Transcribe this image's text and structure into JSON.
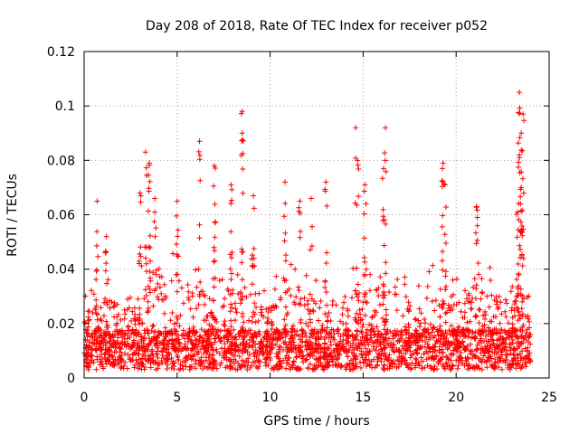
{
  "chart_data": {
    "type": "scatter",
    "title": "Day 208 of 2018, Rate Of TEC Index for receiver p052",
    "xlabel": "GPS time / hours",
    "ylabel": "ROTI / TECUs",
    "xlim": [
      0,
      25
    ],
    "ylim": [
      0,
      0.12
    ],
    "xticks": [
      0,
      5,
      10,
      15,
      20,
      25
    ],
    "xtick_labels": [
      "0",
      "5",
      "10",
      "15",
      "20",
      "25"
    ],
    "yticks": [
      0,
      0.02,
      0.04,
      0.06,
      0.08,
      0.1,
      0.12
    ],
    "ytick_labels": [
      "0",
      "0.02",
      "0.04",
      "0.06",
      "0.08",
      "0.1",
      "0.12"
    ],
    "grid": true,
    "marker": "+",
    "color": "#ff0000",
    "series": [
      {
        "name": "ROTI",
        "density_profile": {
          "x": [
            0,
            1,
            2,
            3,
            4,
            5,
            6,
            7,
            8,
            9,
            10,
            11,
            12,
            13,
            14,
            15,
            16,
            17,
            18,
            19,
            20,
            21,
            22,
            23,
            24
          ],
          "typical_max": [
            0.03,
            0.04,
            0.035,
            0.045,
            0.055,
            0.05,
            0.045,
            0.04,
            0.045,
            0.045,
            0.035,
            0.045,
            0.04,
            0.04,
            0.04,
            0.045,
            0.045,
            0.04,
            0.035,
            0.045,
            0.04,
            0.045,
            0.04,
            0.04,
            0.035
          ]
        },
        "peaks": [
          {
            "x": 0.7,
            "y": 0.065
          },
          {
            "x": 1.2,
            "y": 0.052
          },
          {
            "x": 3.0,
            "y": 0.068
          },
          {
            "x": 3.3,
            "y": 0.083
          },
          {
            "x": 3.5,
            "y": 0.079
          },
          {
            "x": 3.8,
            "y": 0.066
          },
          {
            "x": 5.0,
            "y": 0.065
          },
          {
            "x": 6.2,
            "y": 0.087
          },
          {
            "x": 7.0,
            "y": 0.078
          },
          {
            "x": 7.9,
            "y": 0.071
          },
          {
            "x": 8.5,
            "y": 0.098
          },
          {
            "x": 8.5,
            "y": 0.09
          },
          {
            "x": 9.1,
            "y": 0.067
          },
          {
            "x": 10.8,
            "y": 0.072
          },
          {
            "x": 11.6,
            "y": 0.065
          },
          {
            "x": 12.2,
            "y": 0.066
          },
          {
            "x": 13.0,
            "y": 0.072
          },
          {
            "x": 14.6,
            "y": 0.092
          },
          {
            "x": 14.7,
            "y": 0.08
          },
          {
            "x": 15.1,
            "y": 0.071
          },
          {
            "x": 16.2,
            "y": 0.092
          },
          {
            "x": 16.1,
            "y": 0.077
          },
          {
            "x": 19.3,
            "y": 0.079
          },
          {
            "x": 19.4,
            "y": 0.071
          },
          {
            "x": 21.1,
            "y": 0.063
          },
          {
            "x": 23.4,
            "y": 0.105
          },
          {
            "x": 23.6,
            "y": 0.097
          },
          {
            "x": 23.5,
            "y": 0.09
          },
          {
            "x": 23.4,
            "y": 0.082
          },
          {
            "x": 23.5,
            "y": 0.07
          },
          {
            "x": 23.3,
            "y": 0.061
          }
        ]
      }
    ]
  }
}
